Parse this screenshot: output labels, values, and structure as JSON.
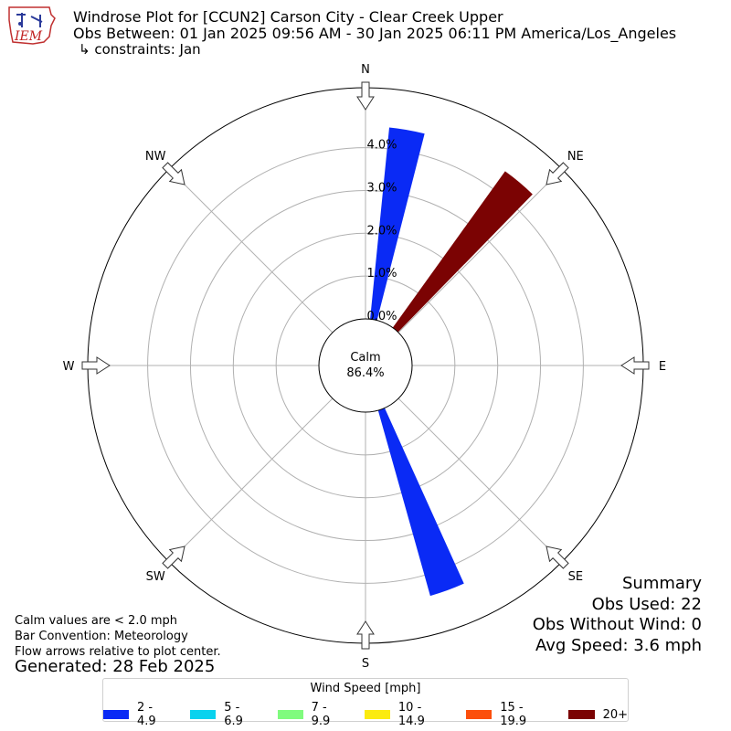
{
  "header": {
    "title_line1": "Windrose Plot for [CCUN2] Carson City - Clear Creek Upper",
    "title_line2": "Obs Between: 01 Jan 2025 09:56 AM - 30 Jan 2025 06:11 PM America/Los_Angeles",
    "title_line3": "↳ constraints: Jan",
    "logo_text": "IEM"
  },
  "chart_data": {
    "type": "windrose",
    "directions": [
      "N",
      "NE",
      "E",
      "SE",
      "S",
      "SW",
      "W",
      "NW"
    ],
    "radial_ticks": [
      "0.0%",
      "1.0%",
      "2.0%",
      "3.0%",
      "4.0%"
    ],
    "radial_tick_values": [
      0,
      1,
      2,
      3,
      4
    ],
    "rmax": 5.4,
    "calm_label": "Calm",
    "calm_value": "86.4%",
    "bars": [
      {
        "direction_deg": 10,
        "bin": "2 - 4.9",
        "value": 4.5
      },
      {
        "direction_deg": 40,
        "bin": "20+",
        "value": 4.5
      },
      {
        "direction_deg": 160,
        "bin": "2 - 4.9",
        "value": 4.5
      }
    ],
    "legend_title": "Wind Speed [mph]",
    "legend": [
      {
        "label": "2 - 4.9",
        "color": "#0a2af5"
      },
      {
        "label": "5 - 6.9",
        "color": "#0ad2ee"
      },
      {
        "label": "7 - 9.9",
        "color": "#80fb7e"
      },
      {
        "label": "10 - 14.9",
        "color": "#fbeb10"
      },
      {
        "label": "15 - 19.9",
        "color": "#fc4f0c"
      },
      {
        "label": "20+",
        "color": "#7b0303"
      }
    ]
  },
  "notes": {
    "line1": "Calm values are < 2.0 mph",
    "line2": "Bar Convention: Meteorology",
    "line3": "Flow arrows relative to plot center.",
    "generated": "Generated: 28 Feb 2025"
  },
  "summary": {
    "title": "Summary",
    "obs_used": "Obs Used: 22",
    "obs_without_wind": "Obs Without Wind: 0",
    "avg_speed": "Avg Speed: 3.6 mph"
  }
}
